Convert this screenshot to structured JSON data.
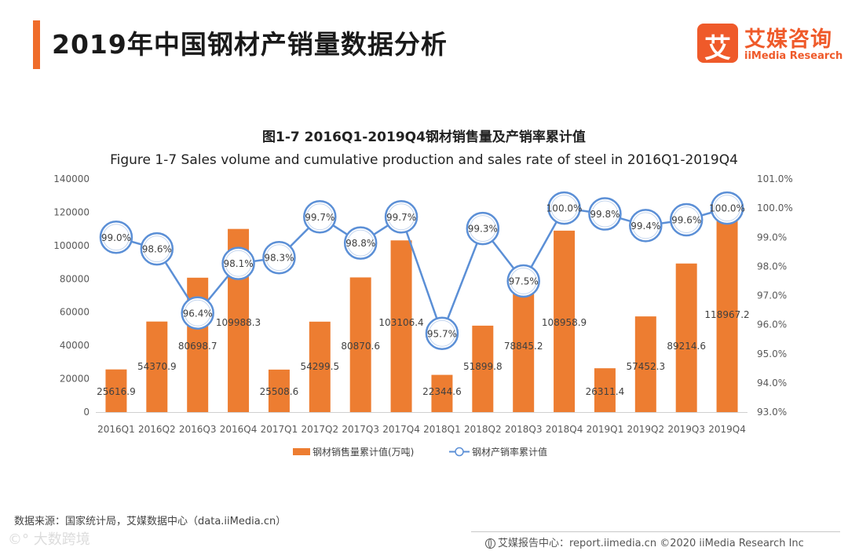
{
  "header": {
    "title": "2019年中国钢材产销量数据分析",
    "accent_color": "#ef6c2a"
  },
  "logo": {
    "mark_char": "艾",
    "name_cn": "艾媒咨询",
    "name_en": "iiMedia Research",
    "color": "#ef5a2a"
  },
  "chart_data": {
    "type": "bar",
    "title": "图1-7 2016Q1-2019Q4钢材销售量及产销率累计值",
    "subtitle": "Figure 1-7 Sales volume and cumulative production and sales rate of steel in 2016Q1-2019Q4",
    "categories": [
      "2016Q1",
      "2016Q2",
      "2016Q3",
      "2016Q4",
      "2017Q1",
      "2017Q2",
      "2017Q3",
      "2017Q4",
      "2018Q1",
      "2018Q2",
      "2018Q3",
      "2018Q4",
      "2019Q1",
      "2019Q2",
      "2019Q3",
      "2019Q4"
    ],
    "series": [
      {
        "name": "钢材销售量累计值(万吨)",
        "type": "bar",
        "axis": "left",
        "color": "#ed7d31",
        "values": [
          25616.9,
          54370.9,
          80698.7,
          109988.3,
          25508.6,
          54299.5,
          80870.6,
          103106.4,
          22344.6,
          51899.8,
          78845.2,
          108958.9,
          26311.4,
          57452.3,
          89214.6,
          118967.2
        ],
        "labels": [
          "25616.9",
          "54370.9",
          "80698.7",
          "109988.3",
          "25508.6",
          "54299.5",
          "80870.6",
          "103106.4",
          "22344.6",
          "51899.8",
          "78845.2",
          "108958.9",
          "26311.4",
          "57452.3",
          "89214.6",
          "118967.2"
        ]
      },
      {
        "name": "钢材产销率累计值",
        "type": "line",
        "axis": "right",
        "color": "#5b8fd6",
        "values": [
          99.0,
          98.6,
          96.4,
          98.1,
          98.3,
          99.7,
          98.8,
          99.7,
          95.7,
          99.3,
          97.5,
          100.0,
          99.8,
          99.4,
          99.6,
          100.0
        ],
        "labels": [
          "99.0%",
          "98.6%",
          "96.4%",
          "98.1%",
          "98.3%",
          "99.7%",
          "98.8%",
          "99.7%",
          "95.7%",
          "99.3%",
          "97.5%",
          "100.0%",
          "99.8%",
          "99.4%",
          "99.6%",
          "100.0%"
        ]
      }
    ],
    "y_left": {
      "range": [
        0,
        140000
      ],
      "ticks": [
        0,
        20000,
        40000,
        60000,
        80000,
        100000,
        120000,
        140000
      ],
      "tick_labels": [
        "0",
        "20000",
        "40000",
        "60000",
        "80000",
        "100000",
        "120000",
        "140000"
      ]
    },
    "y_right": {
      "range": [
        93.0,
        101.0
      ],
      "ticks": [
        93.0,
        94.0,
        95.0,
        96.0,
        97.0,
        98.0,
        99.0,
        100.0,
        101.0
      ],
      "tick_labels": [
        "93.0%",
        "94.0%",
        "95.0%",
        "96.0%",
        "97.0%",
        "98.0%",
        "99.0%",
        "100.0%",
        "101.0%"
      ]
    },
    "grid": false,
    "legend": "bottom-center"
  },
  "source": "数据来源：国家统计局，艾媒数据中心（data.iiMedia.cn）",
  "watermark": "©° 大数跨境",
  "footer": {
    "text": "艾媒报告中心：report.iimedia.cn  ©2020  iiMedia Research  Inc"
  }
}
